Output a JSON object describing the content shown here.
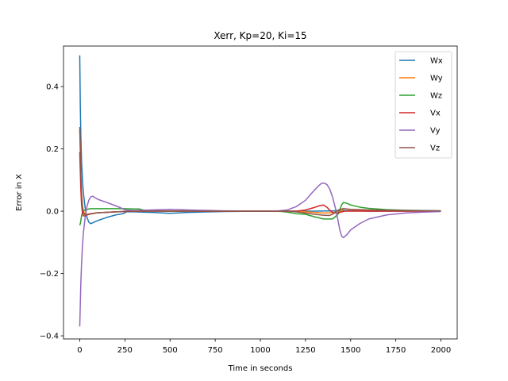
{
  "chart_data": {
    "type": "line",
    "title": "Xerr, Kp=20, Ki=15",
    "xlabel": "Time in seconds",
    "ylabel": "Error in X",
    "xlim": [
      -90,
      2090
    ],
    "ylim": [
      -0.41,
      0.53
    ],
    "xticks": [
      0,
      250,
      500,
      750,
      1000,
      1250,
      1500,
      1750,
      2000
    ],
    "xtick_labels": [
      "0",
      "250",
      "500",
      "750",
      "1000",
      "1250",
      "1500",
      "1750",
      "2000"
    ],
    "yticks": [
      -0.4,
      -0.2,
      0.0,
      0.2,
      0.4
    ],
    "ytick_labels": [
      "−0.4",
      "−0.2",
      "0.0",
      "0.2",
      "0.4"
    ],
    "grid": false,
    "legend_position": "top-right",
    "series": [
      {
        "name": "Wx",
        "color": "#1f77b4",
        "x": [
          0,
          3,
          6,
          10,
          15,
          20,
          30,
          40,
          50,
          60,
          70,
          80,
          100,
          150,
          200,
          240,
          260,
          300,
          400,
          500,
          600,
          800,
          1000,
          1100,
          1200,
          1300,
          1400,
          1450,
          1500,
          1600,
          1800,
          2000
        ],
        "y": [
          0.5,
          0.34,
          0.24,
          0.16,
          0.1,
          0.06,
          0.01,
          -0.02,
          -0.035,
          -0.04,
          -0.038,
          -0.035,
          -0.03,
          -0.02,
          -0.012,
          -0.008,
          -0.002,
          -0.002,
          -0.004,
          -0.007,
          -0.004,
          -0.001,
          0.0,
          0.0,
          0.0,
          0.0,
          0.001,
          0.002,
          0.001,
          0.0,
          0.0,
          0.0
        ]
      },
      {
        "name": "Wy",
        "color": "#ff7f0e",
        "x": [
          0,
          3,
          6,
          10,
          15,
          20,
          30,
          40,
          60,
          100,
          200,
          300,
          500,
          1000,
          1150,
          1250,
          1300,
          1350,
          1400,
          1450,
          1460,
          1500,
          1600,
          1800,
          2000
        ],
        "y": [
          0.26,
          0.2,
          0.12,
          0.06,
          0.02,
          0.0,
          -0.008,
          -0.01,
          -0.008,
          -0.005,
          -0.002,
          0.0,
          0.0,
          0.0,
          0.0,
          -0.002,
          -0.004,
          -0.006,
          -0.005,
          0.0,
          0.008,
          0.005,
          0.003,
          0.001,
          0.0
        ]
      },
      {
        "name": "Wz",
        "color": "#2ca02c",
        "x": [
          0,
          3,
          6,
          10,
          15,
          20,
          30,
          40,
          60,
          100,
          150,
          200,
          250,
          300,
          330,
          350,
          400,
          500,
          700,
          1000,
          1100,
          1150,
          1200,
          1250,
          1300,
          1350,
          1400,
          1430,
          1450,
          1460,
          1480,
          1500,
          1550,
          1600,
          1700,
          1800,
          2000
        ],
        "y": [
          -0.045,
          -0.04,
          -0.03,
          -0.015,
          -0.005,
          0.0,
          0.004,
          0.006,
          0.008,
          0.008,
          0.008,
          0.008,
          0.008,
          0.007,
          0.007,
          0.004,
          0.001,
          0.0,
          0.0,
          0.0,
          0.0,
          -0.003,
          -0.008,
          -0.01,
          -0.018,
          -0.025,
          -0.025,
          -0.01,
          0.02,
          0.028,
          0.025,
          0.02,
          0.013,
          0.009,
          0.005,
          0.003,
          0.001
        ]
      },
      {
        "name": "Vx",
        "color": "#d62728",
        "x": [
          0,
          3,
          6,
          10,
          15,
          20,
          30,
          40,
          60,
          100,
          200,
          300,
          500,
          1000,
          1150,
          1200,
          1250,
          1300,
          1330,
          1350,
          1370,
          1390,
          1410,
          1430,
          1450,
          1470,
          1500,
          1600,
          1800,
          2000
        ],
        "y": [
          0.19,
          0.13,
          0.07,
          0.02,
          -0.005,
          -0.015,
          -0.015,
          -0.012,
          -0.008,
          -0.005,
          -0.002,
          0.0,
          0.0,
          0.0,
          0.0,
          0.0,
          0.004,
          0.012,
          0.018,
          0.02,
          0.012,
          0.0,
          -0.006,
          -0.006,
          -0.002,
          0.0,
          0.0,
          0.0,
          0.0,
          0.0
        ]
      },
      {
        "name": "Vy",
        "color": "#9467bd",
        "x": [
          0,
          3,
          6,
          10,
          15,
          20,
          30,
          40,
          50,
          60,
          70,
          80,
          100,
          150,
          200,
          230,
          250,
          300,
          400,
          500,
          600,
          800,
          1000,
          1100,
          1150,
          1200,
          1250,
          1280,
          1300,
          1320,
          1340,
          1355,
          1370,
          1385,
          1400,
          1420,
          1440,
          1450,
          1460,
          1480,
          1500,
          1550,
          1600,
          1700,
          1800,
          1900,
          2000
        ],
        "y": [
          -0.37,
          -0.3,
          -0.23,
          -0.17,
          -0.11,
          -0.07,
          -0.02,
          0.015,
          0.035,
          0.045,
          0.048,
          0.045,
          0.038,
          0.028,
          0.017,
          0.01,
          0.004,
          0.002,
          0.004,
          0.006,
          0.004,
          0.001,
          0.0,
          0.001,
          0.004,
          0.015,
          0.035,
          0.055,
          0.068,
          0.08,
          0.09,
          0.09,
          0.085,
          0.07,
          0.045,
          0.0,
          -0.06,
          -0.08,
          -0.085,
          -0.075,
          -0.06,
          -0.04,
          -0.025,
          -0.012,
          -0.006,
          -0.003,
          -0.001
        ]
      },
      {
        "name": "Vz",
        "color": "#8c564b",
        "x": [
          0,
          3,
          6,
          10,
          15,
          20,
          30,
          40,
          60,
          100,
          200,
          300,
          500,
          1000,
          1150,
          1200,
          1250,
          1300,
          1350,
          1380,
          1400,
          1420,
          1440,
          1460,
          1500,
          1600,
          1800,
          2000
        ],
        "y": [
          0.27,
          0.2,
          0.12,
          0.05,
          0.01,
          -0.005,
          -0.012,
          -0.012,
          -0.009,
          -0.005,
          -0.002,
          0.0,
          0.0,
          0.0,
          0.0,
          -0.002,
          -0.006,
          -0.01,
          -0.013,
          -0.014,
          -0.01,
          0.0,
          0.006,
          0.008,
          0.006,
          0.004,
          0.002,
          0.001
        ]
      }
    ]
  }
}
